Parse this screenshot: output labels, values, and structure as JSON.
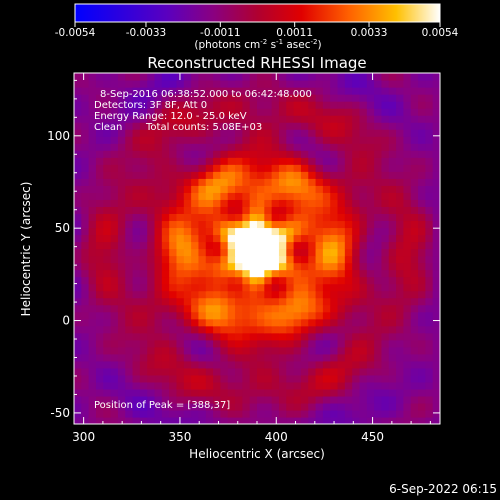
{
  "chart_data": {
    "type": "heatmap",
    "title": "Reconstructed RHESSI Image",
    "colorbar": {
      "ticks": [
        "-0.0054",
        "-0.0033",
        "-0.0011",
        "0.0011",
        "0.0033",
        "0.0054"
      ],
      "tick_values": [
        -0.0054,
        -0.0033,
        -0.0011,
        0.0011,
        0.0033,
        0.0054
      ],
      "range": [
        -0.0054,
        0.0054
      ],
      "unit_label_parts": [
        "(photons cm",
        "-2",
        " s",
        "-1",
        " asec",
        "-2",
        ")"
      ]
    },
    "annotations": {
      "time_range": "8-Sep-2016 06:38:52.000 to 06:42:48.000",
      "detectors": "Detectors: 3F 8F, Att 0",
      "energy": "Energy Range: 12.0 - 25.0 keV",
      "clean": "Clean",
      "counts": "Total counts: 5.08E+03",
      "peak": "Position of Peak = [388,37]"
    },
    "peak": {
      "x": 388,
      "y": 37
    },
    "xlabel": "Heliocentric X (arcsec)",
    "ylabel": "Heliocentric Y (arcsec)",
    "xlim": [
      295,
      485
    ],
    "ylim": [
      -56,
      134
    ],
    "xticks": [
      300,
      350,
      400,
      450
    ],
    "yticks": [
      -50,
      0,
      50,
      100
    ],
    "colors": {
      "background": "#000000",
      "axes": "#ffffff"
    }
  },
  "footer": {
    "timestamp": "6-Sep-2022 06:15"
  }
}
